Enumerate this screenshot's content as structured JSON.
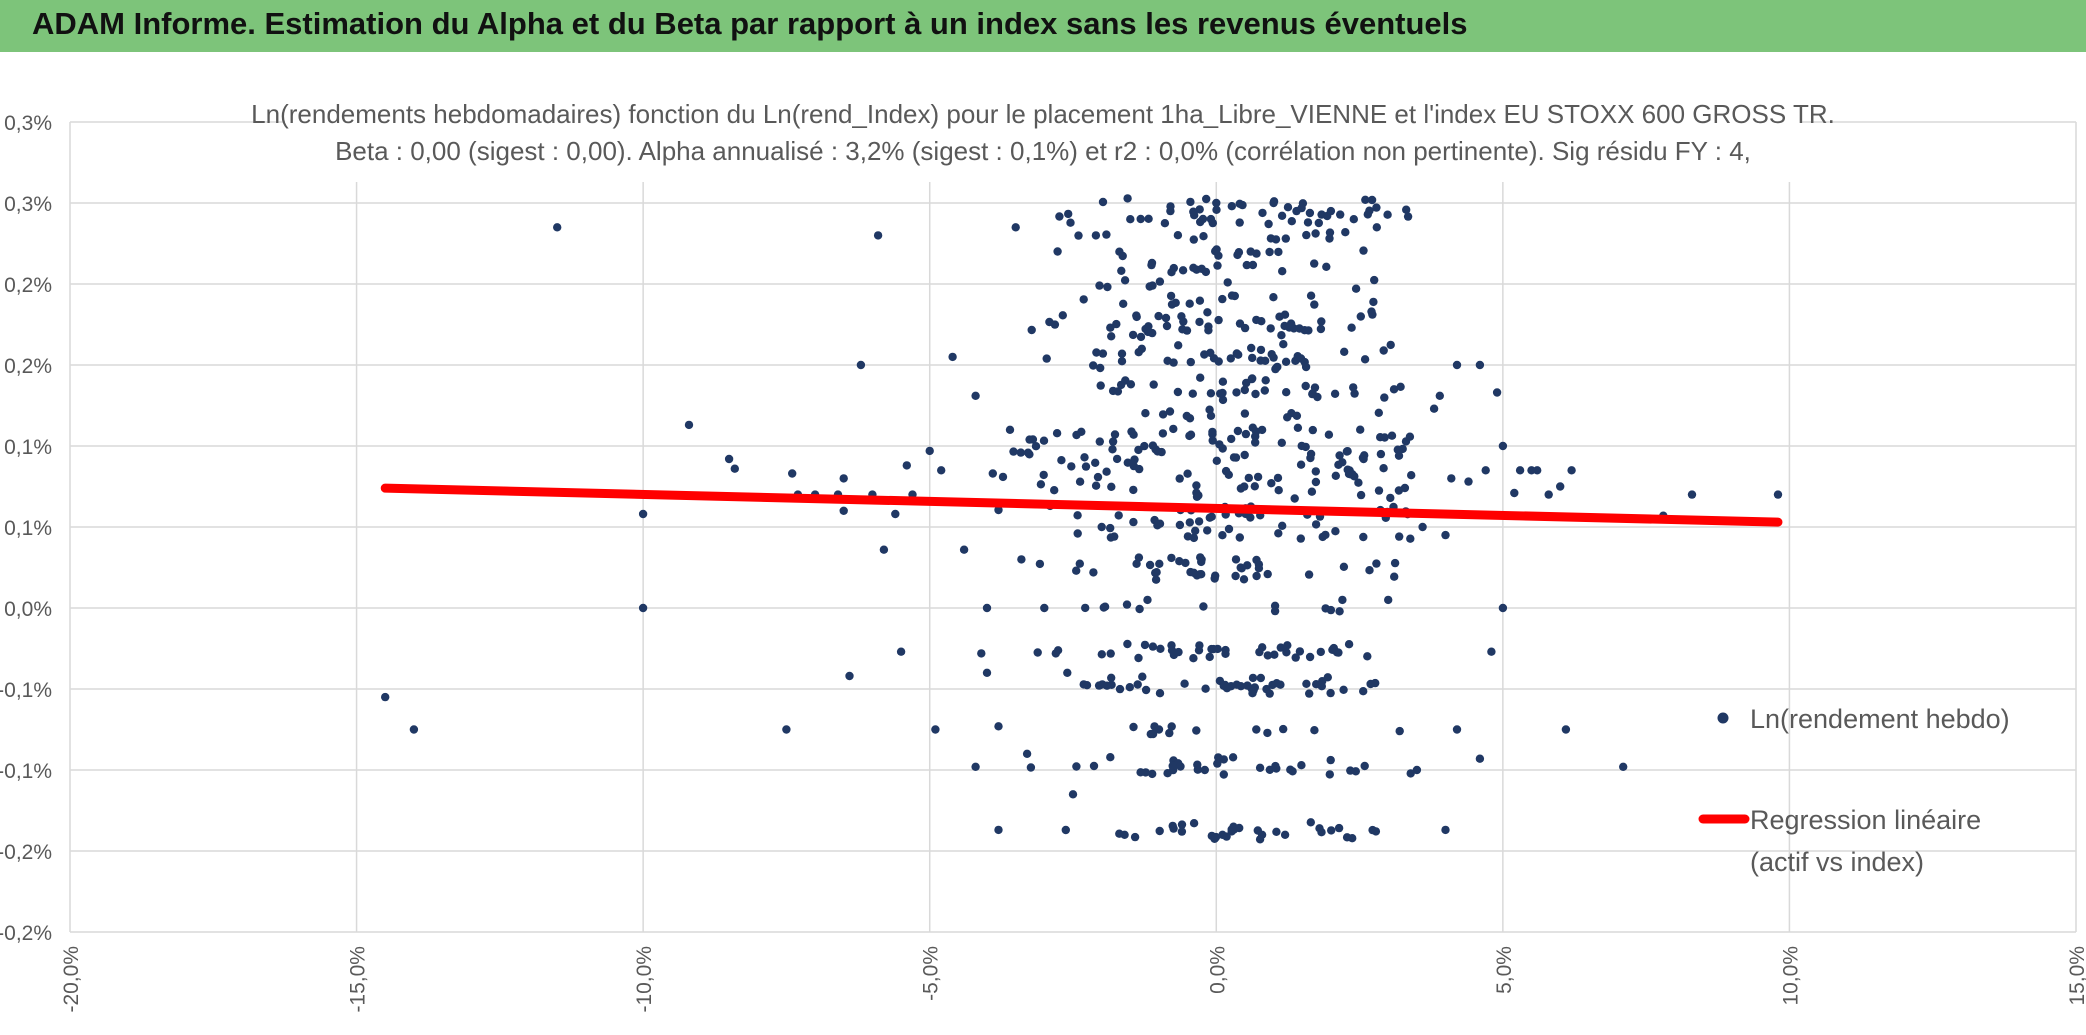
{
  "banner": {
    "title": "ADAM Informe. Estimation du Alpha et du Beta par rapport à un index sans les revenus éventuels",
    "background": "#7dc47a"
  },
  "colors": {
    "points": "#203864",
    "regression": "#ff0000",
    "grid": "#d9d9d9",
    "text": "#595959"
  },
  "chart_data": {
    "type": "scatter",
    "title_line1": "Ln(rendements hebdomadaires) fonction du Ln(rend_Index) pour le placement 1ha_Libre_VIENNE et l'index EU STOXX 600 GROSS TR.",
    "title_line2": "Beta : 0,00 (sigest : 0,00). Alpha annualisé : 3,2% (sigest : 0,1%) et r2 : 0,0% (corrélation non pertinente). Sig résidu FY : 4,",
    "xlim": [
      -20,
      15
    ],
    "ylim": [
      -0.2,
      0.3
    ],
    "x_ticks": [
      {
        "value": -20,
        "label": "-20,0%"
      },
      {
        "value": -15,
        "label": "-15,0%"
      },
      {
        "value": -10,
        "label": "-10,0%"
      },
      {
        "value": -5,
        "label": "-5,0%"
      },
      {
        "value": 0,
        "label": "0,0%"
      },
      {
        "value": 5,
        "label": "5,0%"
      },
      {
        "value": 10,
        "label": "10,0%"
      },
      {
        "value": 15,
        "label": "15,0%"
      }
    ],
    "y_ticks": [
      {
        "value": 0.3,
        "label": "0,3%"
      },
      {
        "value": 0.25,
        "label": "0,3%"
      },
      {
        "value": 0.2,
        "label": "0,2%"
      },
      {
        "value": 0.15,
        "label": "0,2%"
      },
      {
        "value": 0.1,
        "label": "0,1%"
      },
      {
        "value": 0.05,
        "label": "0,1%"
      },
      {
        "value": 0.0,
        "label": "0,0%"
      },
      {
        "value": -0.05,
        "label": "-0,1%"
      },
      {
        "value": -0.1,
        "label": "-0,1%"
      },
      {
        "value": -0.15,
        "label": "-0,2%"
      },
      {
        "value": -0.2,
        "label": "-0,2%"
      }
    ],
    "series": [
      {
        "name": "Ln(rendement hebdo)",
        "kind": "points",
        "cluster_spread_note": "dense cluster around x≈0",
        "points": [
          [
            -11.5,
            0.235
          ],
          [
            -14.5,
            -0.055
          ],
          [
            -14.0,
            -0.075
          ],
          [
            -10.0,
            0.058
          ],
          [
            -10.0,
            0.0
          ],
          [
            -9.2,
            0.113
          ],
          [
            -8.5,
            0.092
          ],
          [
            -8.4,
            0.086
          ],
          [
            -7.5,
            -0.075
          ],
          [
            -7.4,
            0.083
          ],
          [
            -7.3,
            0.07
          ],
          [
            -7.0,
            0.07
          ],
          [
            -6.6,
            0.07
          ],
          [
            -6.5,
            0.06
          ],
          [
            -6.5,
            0.08
          ],
          [
            -6.4,
            -0.042
          ],
          [
            -6.2,
            0.15
          ],
          [
            -6.0,
            0.07
          ],
          [
            -5.9,
            0.23
          ],
          [
            -5.8,
            0.036
          ],
          [
            -5.6,
            0.058
          ],
          [
            -5.5,
            -0.027
          ],
          [
            -5.4,
            0.088
          ],
          [
            -5.3,
            0.07
          ],
          [
            -5.0,
            0.097
          ],
          [
            -4.9,
            -0.075
          ],
          [
            -4.8,
            0.085
          ],
          [
            -4.6,
            0.155
          ],
          [
            -4.4,
            0.036
          ],
          [
            -4.2,
            0.131
          ],
          [
            -4.2,
            -0.098
          ],
          [
            -4.1,
            -0.028
          ],
          [
            -4.0,
            0.0
          ],
          [
            -4.0,
            -0.04
          ],
          [
            -3.9,
            0.083
          ],
          [
            -3.8,
            -0.073
          ],
          [
            -3.8,
            -0.137
          ],
          [
            -3.6,
            0.11
          ],
          [
            -3.5,
            0.235
          ],
          [
            -3.4,
            0.03
          ],
          [
            -3.3,
            -0.09
          ],
          [
            -3.2,
            0.104
          ],
          [
            -3.0,
            0.0
          ],
          [
            -2.9,
            0.063
          ],
          [
            -2.8,
            -0.028
          ],
          [
            -2.6,
            -0.04
          ],
          [
            -2.5,
            -0.115
          ],
          [
            -2.3,
            0.093
          ],
          [
            -2.1,
            0.23
          ],
          [
            -2.0,
            0.05
          ],
          [
            -1.8,
            0.134
          ],
          [
            -1.6,
            -0.14
          ],
          [
            -1.5,
            0.24
          ],
          [
            -1.3,
            0.16
          ],
          [
            -1.2,
            0.005
          ],
          [
            -1.0,
            -0.075
          ],
          [
            -0.8,
            0.245
          ],
          [
            -0.6,
            -0.138
          ],
          [
            -0.4,
            0.21
          ],
          [
            -0.2,
            -0.1
          ],
          [
            0.0,
            0.25
          ],
          [
            0.2,
            0.201
          ],
          [
            0.3,
            -0.135
          ],
          [
            0.5,
            0.12
          ],
          [
            0.6,
            0.22
          ],
          [
            0.8,
            -0.14
          ],
          [
            1.0,
            0.25
          ],
          [
            1.2,
            -0.14
          ],
          [
            1.4,
            0.245
          ],
          [
            1.6,
            0.238
          ],
          [
            1.8,
            -0.136
          ],
          [
            2.0,
            0.245
          ],
          [
            2.2,
            0.005
          ],
          [
            2.4,
            0.24
          ],
          [
            2.6,
            0.252
          ],
          [
            2.8,
            0.235
          ],
          [
            3.0,
            0.005
          ],
          [
            3.1,
            0.135
          ],
          [
            3.2,
            -0.076
          ],
          [
            3.4,
            0.082
          ],
          [
            3.5,
            -0.1
          ],
          [
            3.6,
            0.05
          ],
          [
            3.8,
            0.123
          ],
          [
            3.9,
            0.131
          ],
          [
            4.0,
            -0.137
          ],
          [
            4.0,
            0.045
          ],
          [
            4.1,
            0.08
          ],
          [
            4.2,
            0.15
          ],
          [
            4.2,
            -0.075
          ],
          [
            4.4,
            0.078
          ],
          [
            4.6,
            0.15
          ],
          [
            4.6,
            -0.093
          ],
          [
            4.7,
            0.085
          ],
          [
            4.8,
            -0.027
          ],
          [
            4.9,
            0.133
          ],
          [
            5.0,
            0.1
          ],
          [
            5.0,
            0.0
          ],
          [
            5.2,
            0.071
          ],
          [
            5.3,
            0.085
          ],
          [
            5.5,
            0.085
          ],
          [
            5.6,
            0.085
          ],
          [
            5.8,
            0.07
          ],
          [
            6.0,
            0.075
          ],
          [
            6.2,
            0.085
          ],
          [
            6.1,
            -0.075
          ],
          [
            7.1,
            -0.098
          ],
          [
            7.8,
            0.057
          ],
          [
            8.3,
            0.07
          ],
          [
            9.8,
            0.07
          ]
        ]
      },
      {
        "name": "Regression linéaire (actif vs index)",
        "kind": "line",
        "x_from": -14.5,
        "y_from": 0.074,
        "x_to": 9.8,
        "y_to": 0.053
      }
    ],
    "legend": {
      "placement": "right",
      "entry1": "Ln(rendement hebdo)",
      "entry2_line1": "Regression linéaire",
      "entry2_line2": "(actif vs index)"
    }
  }
}
